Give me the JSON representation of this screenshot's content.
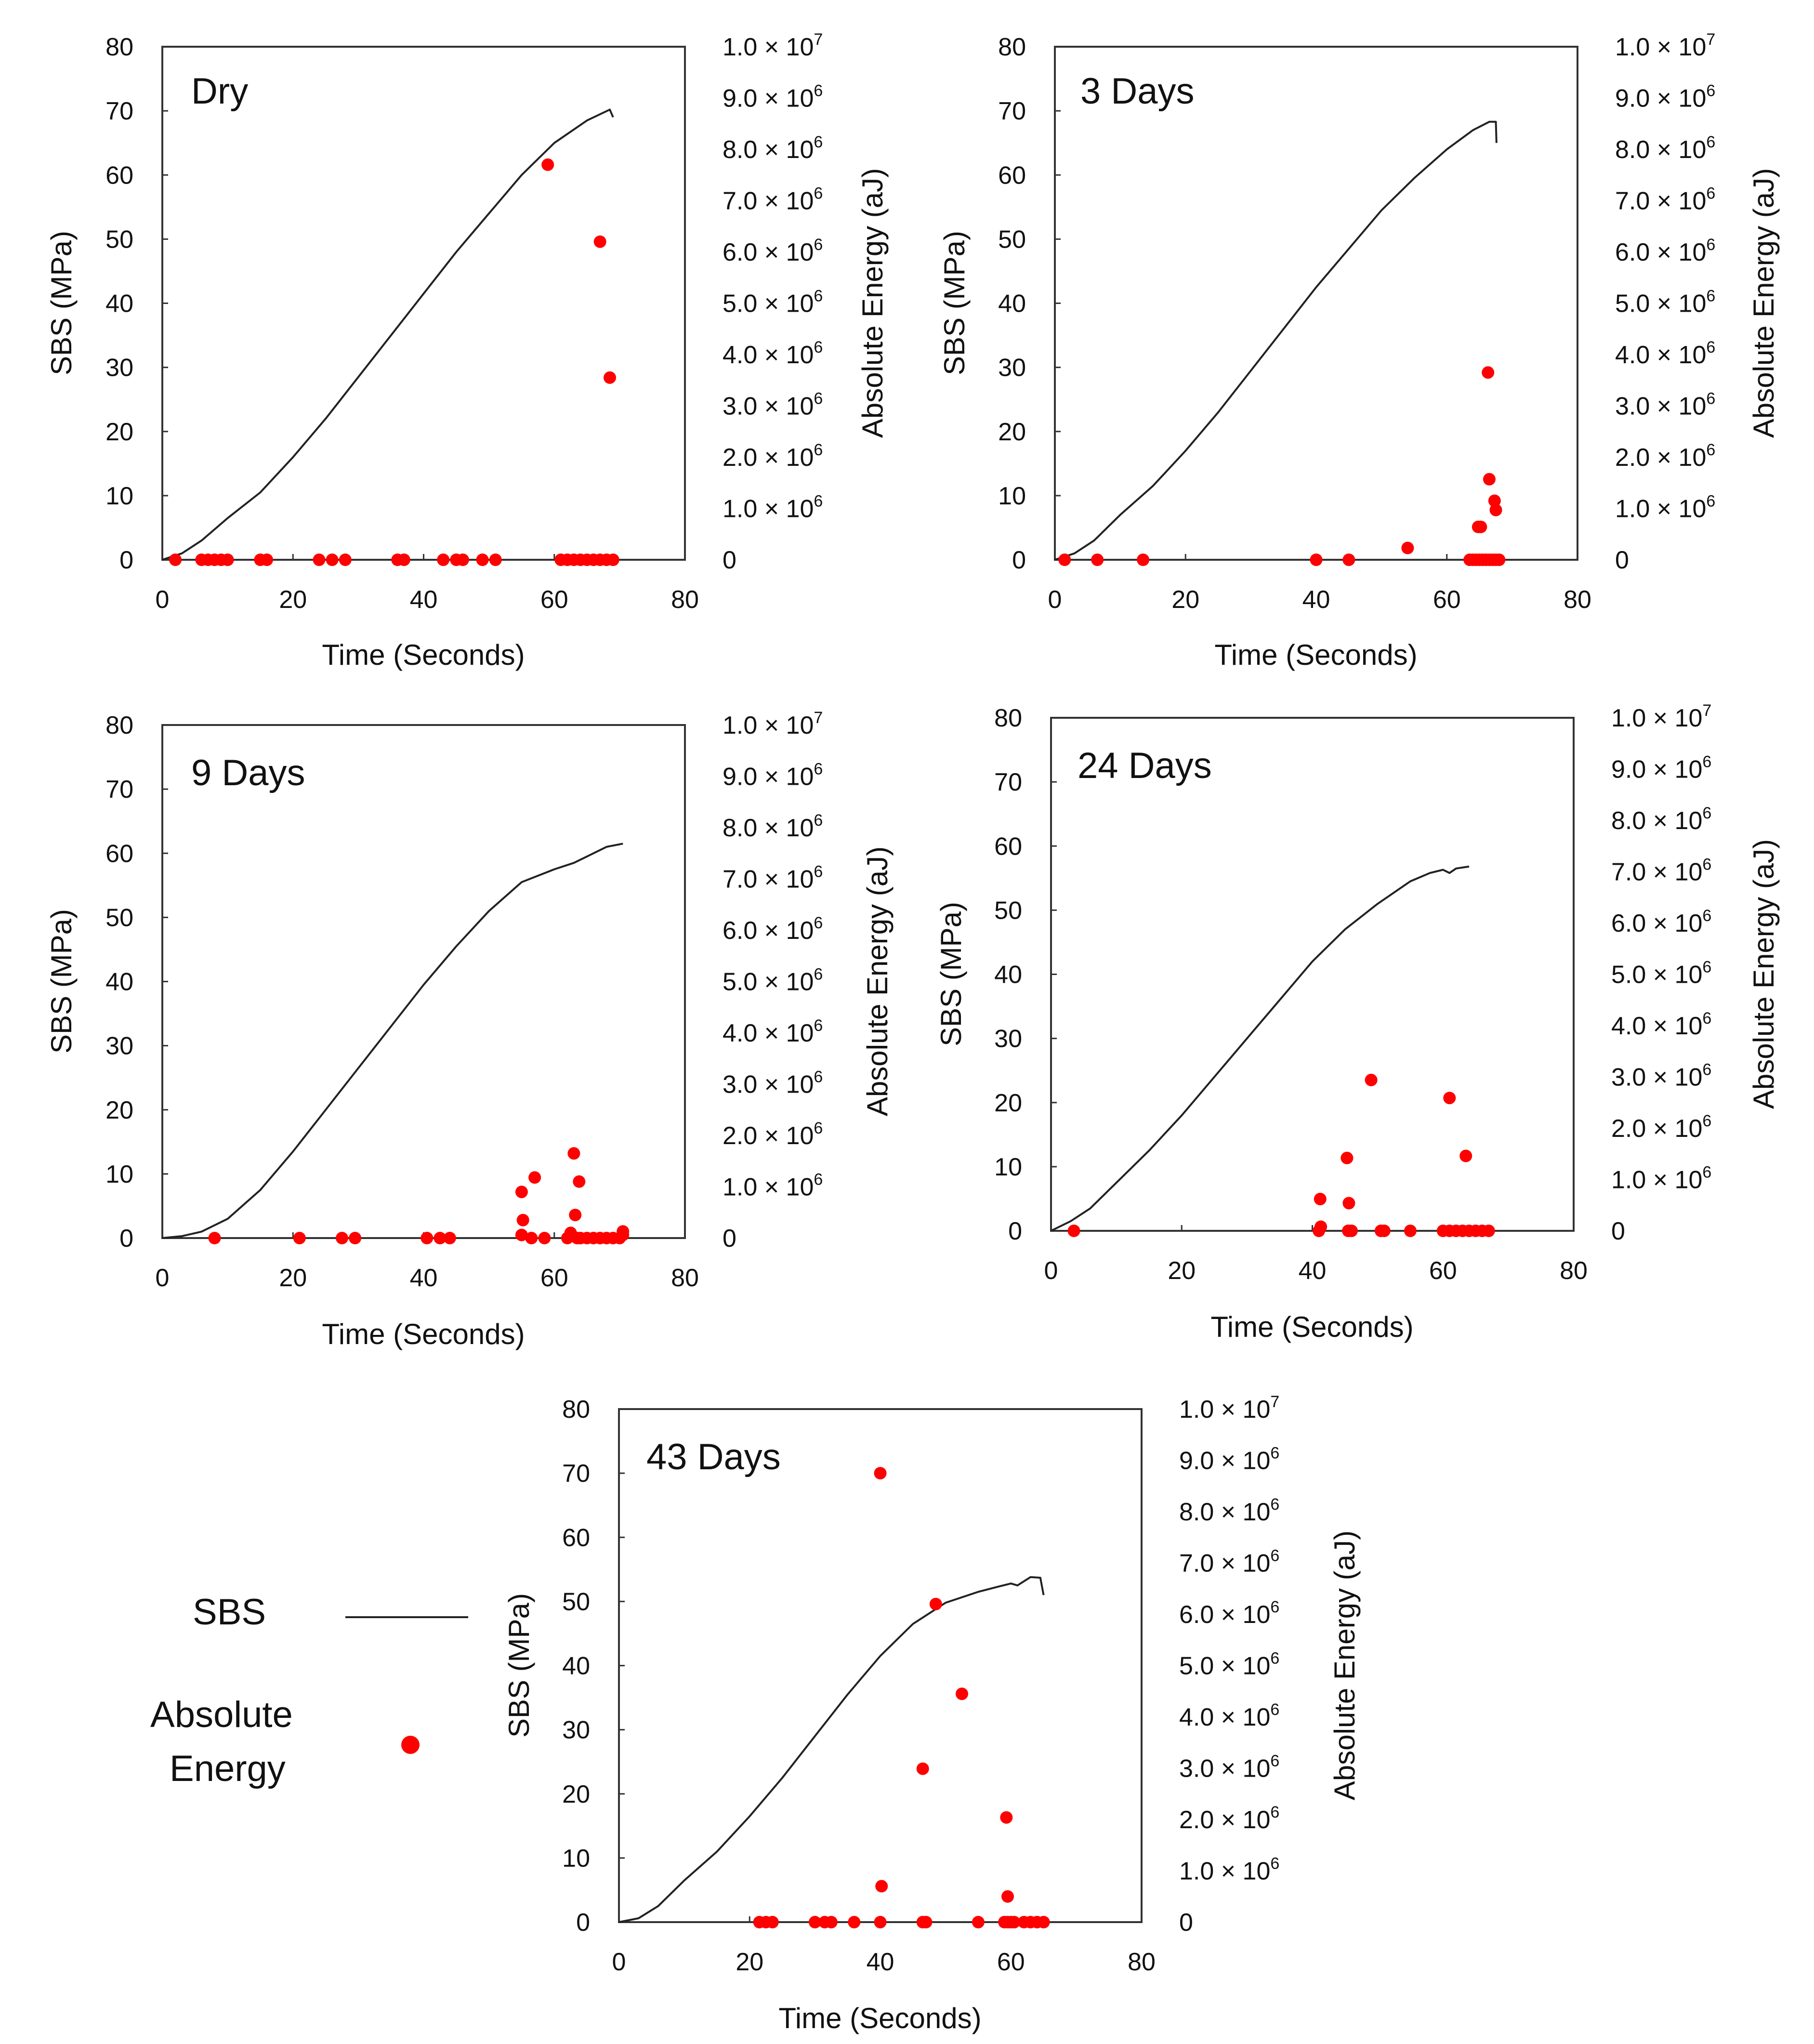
{
  "chart_data": [
    {
      "type": "scatter",
      "title": "Dry",
      "xlabel": "Time (Seconds)",
      "ylabel": "SBS (MPa)",
      "y2label": "Absolute Energy (aJ)",
      "xlim": [
        0,
        80
      ],
      "ylim": [
        0,
        80
      ],
      "y2lim": [
        0,
        10000000
      ],
      "xticks": [
        "0",
        "20",
        "40",
        "60",
        "80"
      ],
      "yticks": [
        "0",
        "10",
        "20",
        "30",
        "40",
        "50",
        "60",
        "70",
        "80"
      ],
      "y2ticks": [
        "0",
        "1.0 × 10^6",
        "2.0 × 10^6",
        "3.0 × 10^6",
        "4.0 × 10^6",
        "5.0 × 10^6",
        "6.0 × 10^6",
        "7.0 × 10^6",
        "8.0 × 10^6",
        "9.0 × 10^6",
        "1.0 × 10^7"
      ],
      "series": [
        {
          "name": "SBS",
          "kind": "line",
          "color": "#222222",
          "x": [
            0,
            3,
            6,
            10,
            15,
            20,
            25,
            30,
            35,
            40,
            45,
            50,
            55,
            60,
            65,
            68.5,
            69
          ],
          "y": [
            0,
            1,
            3,
            6.5,
            10.5,
            16,
            22,
            28.5,
            35,
            41.5,
            48,
            54,
            60,
            65,
            68.5,
            70.2,
            69
          ]
        },
        {
          "name": "Absolute Energy",
          "kind": "scatter",
          "color": "#ff0000",
          "x": [
            2,
            6,
            7,
            8,
            9,
            10,
            15,
            16,
            24,
            26,
            28,
            36,
            37,
            43,
            45,
            46,
            49,
            51,
            59,
            61,
            62,
            63,
            64,
            65,
            66,
            67,
            67,
            68,
            68.5,
            69
          ],
          "y": [
            0,
            0,
            0,
            0,
            0,
            0,
            0,
            0,
            0,
            0,
            0,
            0,
            0,
            0,
            0,
            0,
            0,
            0,
            7700000,
            0,
            0,
            0,
            0,
            0,
            0,
            6200000,
            0,
            0,
            3550000,
            0
          ]
        }
      ]
    },
    {
      "type": "scatter",
      "title": "3 Days",
      "xlabel": "Time (Seconds)",
      "ylabel": "SBS (MPa)",
      "y2label": "Absolute Energy (aJ)",
      "xlim": [
        0,
        80
      ],
      "ylim": [
        0,
        80
      ],
      "y2lim": [
        0,
        10000000
      ],
      "xticks": [
        "0",
        "20",
        "40",
        "60",
        "80"
      ],
      "yticks": [
        "0",
        "10",
        "20",
        "30",
        "40",
        "50",
        "60",
        "70",
        "80"
      ],
      "y2ticks": [
        "0",
        "1.0 × 10^6",
        "2.0 × 10^6",
        "3.0 × 10^6",
        "4.0 × 10^6",
        "5.0 × 10^6",
        "6.0 × 10^6",
        "7.0 × 10^6",
        "8.0 × 10^6",
        "9.0 × 10^6",
        "1.0 × 10^7"
      ],
      "series": [
        {
          "name": "SBS",
          "kind": "line",
          "color": "#222222",
          "x": [
            0,
            3,
            6,
            10,
            15,
            20,
            25,
            30,
            35,
            40,
            45,
            50,
            55,
            60,
            64,
            66.5,
            67.5,
            67.6
          ],
          "y": [
            0,
            1,
            3,
            7,
            11.5,
            17,
            23,
            29.5,
            36,
            42.5,
            48.5,
            54.5,
            59.5,
            64,
            67,
            68.3,
            68.3,
            65
          ]
        },
        {
          "name": "Absolute Energy",
          "kind": "scatter",
          "color": "#ff0000",
          "x": [
            1.5,
            6.5,
            13.5,
            40,
            45,
            54,
            63.5,
            64,
            64.5,
            65,
            65.5,
            66,
            66.5,
            67,
            67.5,
            68,
            64.8,
            65.2,
            66.3,
            66.5,
            67.3,
            67.5
          ],
          "y": [
            0,
            0,
            0,
            0,
            0,
            230000,
            0,
            0,
            0,
            0,
            0,
            0,
            0,
            0,
            0,
            0,
            640000,
            640000,
            3650000,
            1570000,
            1150000,
            970000
          ]
        }
      ]
    },
    {
      "type": "scatter",
      "title": "9 Days",
      "xlabel": "Time (Seconds)",
      "ylabel": "SBS (MPa)",
      "y2label": "Absolute Energy (aJ)",
      "xlim": [
        0,
        80
      ],
      "ylim": [
        0,
        80
      ],
      "y2lim": [
        0,
        10000000
      ],
      "xticks": [
        "0",
        "20",
        "40",
        "60",
        "80"
      ],
      "yticks": [
        "0",
        "10",
        "20",
        "30",
        "40",
        "50",
        "60",
        "70",
        "80"
      ],
      "y2ticks": [
        "0",
        "1.0 × 10^6",
        "2.0 × 10^6",
        "3.0 × 10^6",
        "4.0 × 10^6",
        "5.0 × 10^6",
        "6.0 × 10^6",
        "7.0 × 10^6",
        "8.0 × 10^6",
        "9.0 × 10^6",
        "1.0 × 10^7"
      ],
      "series": [
        {
          "name": "SBS",
          "kind": "line",
          "color": "#222222",
          "x": [
            0,
            3,
            6,
            10,
            15,
            20,
            25,
            30,
            35,
            40,
            45,
            50,
            55,
            60,
            63,
            65,
            68,
            70.5
          ],
          "y": [
            0,
            0.3,
            1,
            3,
            7.5,
            13.5,
            20,
            26.5,
            33,
            39.5,
            45.5,
            51,
            55.5,
            57.5,
            58.5,
            59.5,
            61,
            61.5
          ]
        },
        {
          "name": "Absolute Energy",
          "kind": "scatter",
          "color": "#ff0000",
          "x": [
            8,
            21,
            27.5,
            29.5,
            40.5,
            42.5,
            44,
            55,
            56.5,
            58.5,
            62,
            62.5,
            63.5,
            64,
            65,
            66,
            67,
            68,
            69,
            70,
            70.5,
            55,
            55.2,
            57,
            63,
            63.2,
            63.8,
            70.5
          ],
          "y": [
            0,
            0,
            0,
            0,
            0,
            0,
            0,
            60000,
            0,
            0,
            0,
            100000,
            0,
            0,
            0,
            0,
            0,
            0,
            0,
            0,
            60000,
            900000,
            350000,
            1180000,
            1650000,
            450000,
            1100000,
            130000
          ]
        }
      ]
    },
    {
      "type": "scatter",
      "title": "24 Days",
      "xlabel": "Time (Seconds)",
      "ylabel": "SBS (MPa)",
      "y2label": "Absolute Energy (aJ)",
      "xlim": [
        0,
        80
      ],
      "ylim": [
        0,
        80
      ],
      "y2lim": [
        0,
        10000000
      ],
      "xticks": [
        "0",
        "20",
        "40",
        "60",
        "80"
      ],
      "yticks": [
        "0",
        "10",
        "20",
        "30",
        "40",
        "50",
        "60",
        "70",
        "80"
      ],
      "y2ticks": [
        "0",
        "1.0 × 10^6",
        "2.0 × 10^6",
        "3.0 × 10^6",
        "4.0 × 10^6",
        "5.0 × 10^6",
        "6.0 × 10^6",
        "7.0 × 10^6",
        "8.0 × 10^6",
        "9.0 × 10^6",
        "1.0 × 10^7"
      ],
      "series": [
        {
          "name": "SBS",
          "kind": "line",
          "color": "#222222",
          "x": [
            0,
            3,
            6,
            10,
            15,
            20,
            25,
            30,
            35,
            40,
            45,
            50,
            55,
            58,
            60,
            61,
            62,
            64
          ],
          "y": [
            0,
            1.5,
            3.5,
            7.5,
            12.5,
            18,
            24,
            30,
            36,
            42,
            47,
            51,
            54.5,
            55.8,
            56.3,
            55.8,
            56.5,
            56.8
          ]
        },
        {
          "name": "Absolute Energy",
          "kind": "scatter",
          "color": "#ff0000",
          "x": [
            3.5,
            41,
            41.3,
            45.5,
            46,
            50.5,
            51,
            55,
            60,
            61,
            62,
            63,
            64,
            65,
            66,
            67,
            41.2,
            45.3,
            45.6,
            49,
            61,
            63.5
          ],
          "y": [
            0,
            0,
            80000,
            0,
            0,
            0,
            0,
            0,
            0,
            0,
            0,
            0,
            0,
            0,
            0,
            0,
            620000,
            1420000,
            540000,
            2940000,
            2590000,
            1460000
          ]
        }
      ]
    },
    {
      "type": "scatter",
      "title": "43 Days",
      "xlabel": "Time (Seconds)",
      "ylabel": "SBS (MPa)",
      "y2label": "Absolute Energy (aJ)",
      "xlim": [
        0,
        80
      ],
      "ylim": [
        0,
        80
      ],
      "y2lim": [
        0,
        10000000
      ],
      "xticks": [
        "0",
        "20",
        "40",
        "60",
        "80"
      ],
      "yticks": [
        "0",
        "10",
        "20",
        "30",
        "40",
        "50",
        "60",
        "70",
        "80"
      ],
      "y2ticks": [
        "0",
        "1.0 × 10^6",
        "2.0 × 10^6",
        "3.0 × 10^6",
        "4.0 × 10^6",
        "5.0 × 10^6",
        "6.0 × 10^6",
        "7.0 × 10^6",
        "8.0 × 10^6",
        "9.0 × 10^6",
        "1.0 × 10^7"
      ],
      "series": [
        {
          "name": "SBS",
          "kind": "line",
          "color": "#222222",
          "x": [
            0,
            3,
            6,
            10,
            15,
            20,
            25,
            30,
            35,
            40,
            45,
            50,
            55,
            58,
            60,
            61,
            63,
            64.5,
            65
          ],
          "y": [
            0,
            0.6,
            2.5,
            6.5,
            11,
            16.5,
            22.5,
            29,
            35.5,
            41.5,
            46.5,
            49.8,
            51.5,
            52.3,
            52.8,
            52.5,
            53.8,
            53.7,
            51
          ]
        },
        {
          "name": "Absolute Energy",
          "kind": "scatter",
          "color": "#ff0000",
          "x": [
            21.5,
            22.5,
            23.5,
            30,
            31.5,
            32.5,
            36,
            40,
            46.5,
            47,
            55,
            59,
            59.5,
            60,
            60.5,
            62,
            63,
            64,
            65,
            40,
            40.2,
            46.5,
            48.5,
            52.5,
            59.3,
            59.5
          ],
          "y": [
            0,
            0,
            0,
            0,
            0,
            0,
            0,
            0,
            0,
            0,
            0,
            0,
            0,
            0,
            0,
            0,
            0,
            0,
            0,
            8750000,
            700000,
            2990000,
            6200000,
            4450000,
            2040000,
            500000
          ]
        }
      ]
    }
  ],
  "legend": {
    "sbs_label": "SBS",
    "energy_label_line1": "Absolute",
    "energy_label_line2": "Energy",
    "sbs_color": "#222222",
    "energy_color": "#ff0000"
  }
}
